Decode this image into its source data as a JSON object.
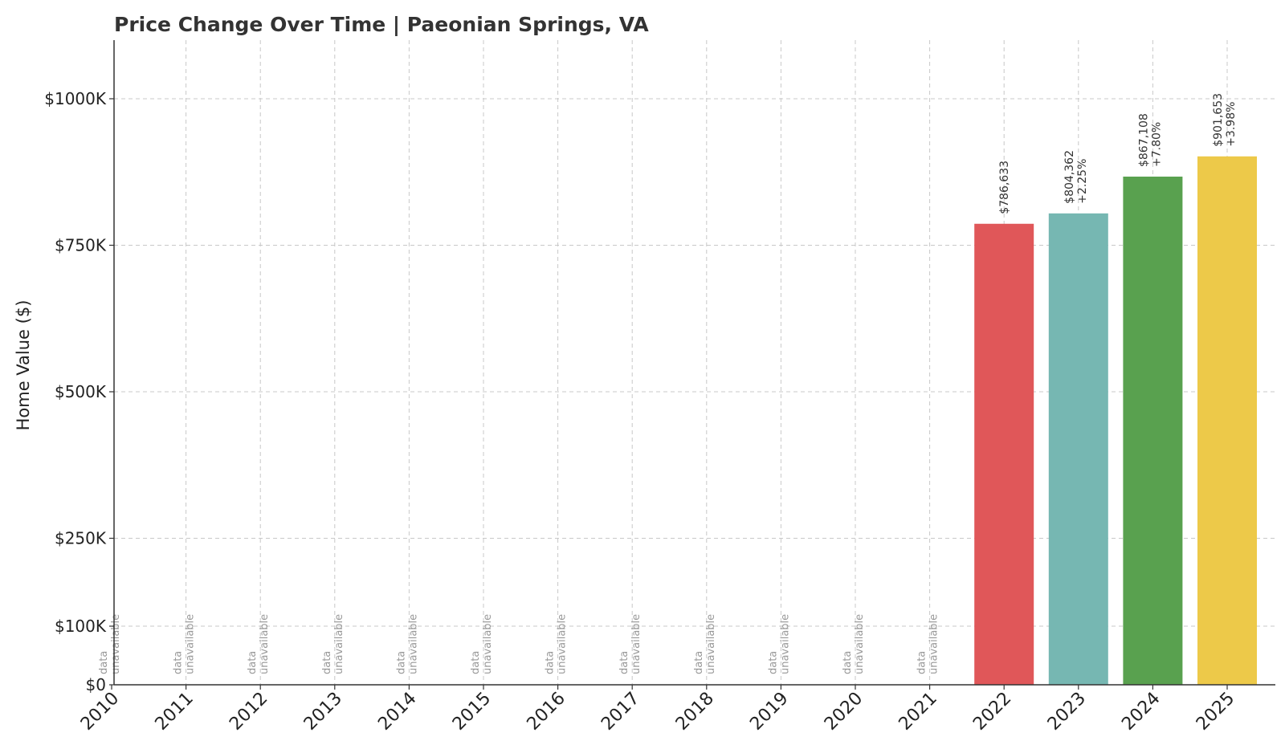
{
  "chart_data": {
    "type": "bar",
    "title": "Price Change Over Time | Paeonian Springs, VA",
    "xlabel": "",
    "ylabel": "Home Value ($)",
    "ylim": [
      0,
      1100000
    ],
    "yticks": [
      0,
      100000,
      250000,
      500000,
      750000,
      1000000
    ],
    "ytick_labels": [
      "$0",
      "$100K",
      "$250K",
      "$500K",
      "$750K",
      "$1000K"
    ],
    "grid": true,
    "categories": [
      "2010",
      "2011",
      "2012",
      "2013",
      "2014",
      "2015",
      "2016",
      "2017",
      "2018",
      "2019",
      "2020",
      "2021",
      "2022",
      "2023",
      "2024",
      "2025"
    ],
    "values": [
      null,
      null,
      null,
      null,
      null,
      null,
      null,
      null,
      null,
      null,
      null,
      null,
      786633,
      804362,
      867108,
      901653
    ],
    "value_labels": [
      "",
      "",
      "",
      "",
      "",
      "",
      "",
      "",
      "",
      "",
      "",
      "",
      "$786,633",
      "$804,362",
      "$867,108",
      "$901,653"
    ],
    "change_labels": [
      "",
      "",
      "",
      "",
      "",
      "",
      "",
      "",
      "",
      "",
      "",
      "",
      "",
      "+2.25%",
      "+7.80%",
      "+3.98%"
    ],
    "missing_label_line1": "data",
    "missing_label_line2": "unavailable",
    "colors": [
      "#e05759",
      "#76b7b2",
      "#59a14f",
      "#edc949"
    ]
  }
}
